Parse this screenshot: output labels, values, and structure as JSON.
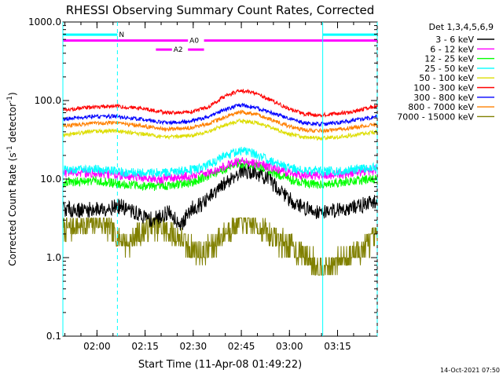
{
  "chart_data": {
    "type": "line",
    "title": "RHESSI Observing Summary Count Rates, Corrected",
    "xlabel": "Start Time (11-Apr-08 01:49:22)",
    "ylabel_parts": [
      "Corrected Count Rate (s",
      "-1",
      " detector",
      "-1",
      ")"
    ],
    "footer": "14-Oct-2021 07:50",
    "x_unit": "minutes after 01:49:22",
    "xlim": [
      0,
      98
    ],
    "ylim": [
      0.1,
      1000
    ],
    "yscale": "log",
    "x_ticks": [
      {
        "t": 10.63,
        "label": "02:00"
      },
      {
        "t": 25.63,
        "label": "02:15"
      },
      {
        "t": 40.63,
        "label": "02:30"
      },
      {
        "t": 55.63,
        "label": "02:45"
      },
      {
        "t": 70.63,
        "label": "03:00"
      },
      {
        "t": 85.63,
        "label": "03:15"
      }
    ],
    "y_ticks": [
      {
        "v": 0.1,
        "label": "0.1"
      },
      {
        "v": 1,
        "label": "1.0"
      },
      {
        "v": 10,
        "label": "10.0"
      },
      {
        "v": 100,
        "label": "100.0"
      },
      {
        "v": 1000,
        "label": "1000.0"
      }
    ],
    "legend_title": "Det 1,3,4,5,6,9",
    "legend_placement": "right, outside plot",
    "series": [
      {
        "name": "3 - 6 keV",
        "color": "#000000",
        "x": [
          0,
          6,
          12,
          18,
          24,
          28,
          33,
          37,
          40,
          44,
          48,
          52,
          56,
          60,
          64,
          68,
          72,
          76,
          80,
          84,
          88,
          92,
          96,
          98
        ],
        "y": [
          4.2,
          4.0,
          4.2,
          4.5,
          3.5,
          3.0,
          3.8,
          2.6,
          4.2,
          5.0,
          7.0,
          10.0,
          13.0,
          12.0,
          10.0,
          7.0,
          5.0,
          4.2,
          3.8,
          4.0,
          4.2,
          4.5,
          5.0,
          5.2
        ]
      },
      {
        "name": "6 - 12 keV",
        "color": "#ff00ff",
        "x": [
          0,
          10,
          20,
          30,
          40,
          45,
          50,
          55,
          60,
          65,
          70,
          75,
          80,
          90,
          98
        ],
        "y": [
          12,
          12,
          11,
          10,
          11,
          12,
          14,
          17,
          16,
          14,
          12,
          11,
          11,
          12,
          13
        ]
      },
      {
        "name": "12 - 25 keV",
        "color": "#00ff00",
        "x": [
          0,
          10,
          20,
          30,
          40,
          45,
          50,
          55,
          60,
          65,
          70,
          75,
          80,
          90,
          98
        ],
        "y": [
          9,
          9.5,
          8.5,
          8,
          9,
          11,
          13,
          16,
          15,
          12.5,
          10,
          9,
          8.5,
          9.5,
          10
        ]
      },
      {
        "name": "25 - 50 keV",
        "color": "#00ffff",
        "x": [
          0,
          10,
          20,
          30,
          40,
          45,
          50,
          55,
          60,
          65,
          70,
          75,
          80,
          90,
          98
        ],
        "y": [
          13,
          13.5,
          12,
          12,
          13,
          15,
          19,
          23,
          21,
          17,
          14,
          13,
          12.5,
          13,
          14
        ]
      },
      {
        "name": "50 - 100 keV",
        "color": "#dddd00",
        "x": [
          0,
          8,
          16,
          24,
          32,
          40,
          45,
          50,
          55,
          60,
          65,
          70,
          75,
          80,
          85,
          90,
          98
        ],
        "y": [
          36,
          40,
          41,
          38,
          34,
          36,
          40,
          48,
          55,
          52,
          45,
          38,
          34,
          33,
          34,
          36,
          40
        ]
      },
      {
        "name": "100 - 300 keV",
        "color": "#ff0000",
        "x": [
          0,
          8,
          16,
          24,
          32,
          40,
          45,
          50,
          55,
          60,
          65,
          70,
          75,
          80,
          85,
          90,
          98
        ],
        "y": [
          75,
          82,
          85,
          80,
          70,
          72,
          82,
          110,
          135,
          125,
          100,
          80,
          68,
          65,
          68,
          72,
          85
        ]
      },
      {
        "name": "300 - 800 keV",
        "color": "#0000ff",
        "x": [
          0,
          8,
          16,
          24,
          32,
          40,
          45,
          50,
          55,
          60,
          65,
          70,
          75,
          80,
          85,
          90,
          98
        ],
        "y": [
          58,
          62,
          63,
          58,
          52,
          54,
          62,
          75,
          88,
          82,
          70,
          60,
          52,
          50,
          52,
          55,
          62
        ]
      },
      {
        "name": "800 - 7000 keV",
        "color": "#ff8000",
        "x": [
          0,
          8,
          16,
          24,
          32,
          40,
          45,
          50,
          55,
          60,
          65,
          70,
          75,
          80,
          85,
          90,
          98
        ],
        "y": [
          47,
          51,
          52,
          48,
          43,
          45,
          50,
          60,
          72,
          68,
          57,
          48,
          42,
          41,
          42,
          45,
          50
        ]
      },
      {
        "name": "7000 - 15000 keV",
        "color": "#808000",
        "x": [
          0,
          6,
          12,
          16,
          20,
          24,
          28,
          32,
          36,
          40,
          44,
          48,
          52,
          56,
          60,
          64,
          68,
          72,
          76,
          80,
          84,
          88,
          92,
          96,
          98
        ],
        "y": [
          2.2,
          2.6,
          2.8,
          2.0,
          1.5,
          2.0,
          2.6,
          2.3,
          1.8,
          1.3,
          1.2,
          1.6,
          2.4,
          3.0,
          2.6,
          2.0,
          1.6,
          1.3,
          1.0,
          0.8,
          0.8,
          1.0,
          1.2,
          1.6,
          1.8
        ]
      }
    ],
    "time_markers": [
      {
        "t": 0,
        "style": "solid"
      },
      {
        "t": 17,
        "style": "dashed"
      },
      {
        "t": 81,
        "style": "solid"
      },
      {
        "t": 98,
        "style": "dashed"
      }
    ],
    "flag_bars": [
      {
        "label": "N",
        "color": "#00ffff",
        "segments": [
          [
            0,
            17
          ],
          [
            81,
            98
          ]
        ],
        "level": 690
      },
      {
        "label": "A0",
        "color": "#ff00ff",
        "segments": [
          [
            0,
            39
          ],
          [
            44,
            98
          ]
        ],
        "level": 580
      },
      {
        "label": "A2",
        "color": "#ff00ff",
        "segments": [
          [
            29,
            34
          ],
          [
            39,
            44
          ]
        ],
        "level": 445
      }
    ]
  }
}
